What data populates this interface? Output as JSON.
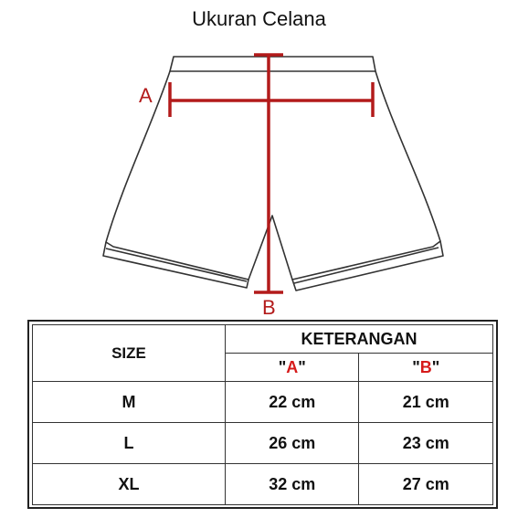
{
  "title": "Ukuran Celana",
  "colors": {
    "accent": "#b31b1b",
    "outline": "#333333"
  },
  "diagram": {
    "label_a": "A",
    "label_b": "B"
  },
  "table": {
    "header_size": "SIZE",
    "header_keterangan": "KETERANGAN",
    "col_a_open": "\"",
    "col_a_letter": "A",
    "col_a_close": "\"",
    "col_b_open": "\"",
    "col_b_letter": "B",
    "col_b_close": "\"",
    "rows": [
      {
        "size": "M",
        "a": "22 cm",
        "b": "21 cm"
      },
      {
        "size": "L",
        "a": "26 cm",
        "b": "23 cm"
      },
      {
        "size": "XL",
        "a": "32 cm",
        "b": "27 cm"
      }
    ]
  }
}
